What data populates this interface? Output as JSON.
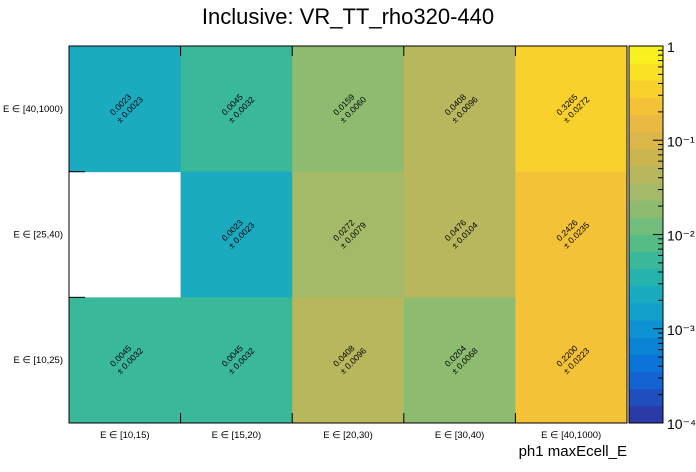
{
  "chart_data": {
    "type": "heatmap",
    "title": "Inclusive: VR_TT_rho320-440",
    "xlabel": "ph1 maxEcell_E",
    "ylabel": "",
    "x_categories": [
      "E ∈ [10,15)",
      "E ∈ [15,20)",
      "E ∈ [20,30)",
      "E ∈ [30,40)",
      "E ∈ [40,1000)"
    ],
    "y_categories": [
      "E ∈ [10,25)",
      "E ∈ [25,40)",
      "E ∈ [40,1000)"
    ],
    "z_scale": "log",
    "zlim": [
      0.0001,
      1
    ],
    "colorbar_ticks": [
      {
        "value": 1,
        "label": "1"
      },
      {
        "value": 0.1,
        "label": "10⁻¹"
      },
      {
        "value": 0.01,
        "label": "10⁻²"
      },
      {
        "value": 0.001,
        "label": "10⁻³"
      },
      {
        "value": 0.0001,
        "label": "10⁻⁴"
      }
    ],
    "cells": [
      {
        "x": 0,
        "y": 2,
        "value": 0.0023,
        "label": "0.0023",
        "error": "± 0.0023"
      },
      {
        "x": 1,
        "y": 2,
        "value": 0.0045,
        "label": "0.0045",
        "error": "± 0.0032"
      },
      {
        "x": 2,
        "y": 2,
        "value": 0.0159,
        "label": "0.0159",
        "error": "± 0.0060"
      },
      {
        "x": 3,
        "y": 2,
        "value": 0.0408,
        "label": "0.0408",
        "error": "± 0.0096"
      },
      {
        "x": 4,
        "y": 2,
        "value": 0.3265,
        "label": "0.3265",
        "error": "± 0.0272"
      },
      {
        "x": 1,
        "y": 1,
        "value": 0.0023,
        "label": "0.0023",
        "error": "± 0.0023"
      },
      {
        "x": 2,
        "y": 1,
        "value": 0.0272,
        "label": "0.0272",
        "error": "± 0.0079"
      },
      {
        "x": 3,
        "y": 1,
        "value": 0.0476,
        "label": "0.0476",
        "error": "± 0.0104"
      },
      {
        "x": 4,
        "y": 1,
        "value": 0.2426,
        "label": "0.2426",
        "error": "± 0.0235"
      },
      {
        "x": 0,
        "y": 0,
        "value": 0.0045,
        "label": "0.0045",
        "error": "± 0.0032"
      },
      {
        "x": 1,
        "y": 0,
        "value": 0.0045,
        "label": "0.0045",
        "error": "± 0.0032"
      },
      {
        "x": 2,
        "y": 0,
        "value": 0.0408,
        "label": "0.0408",
        "error": "± 0.0096"
      },
      {
        "x": 3,
        "y": 0,
        "value": 0.0204,
        "label": "0.0204",
        "error": "± 0.0068"
      },
      {
        "x": 4,
        "y": 0,
        "value": 0.22,
        "label": "0.2200",
        "error": "± 0.0223"
      }
    ],
    "palette": [
      "#2a3aa6",
      "#1f4fbf",
      "#1463d2",
      "#0b74d8",
      "#0b84d6",
      "#0f92d2",
      "#13a0cc",
      "#1aabc0",
      "#26b3ad",
      "#3ab89a",
      "#56bc86",
      "#72bd7b",
      "#8dbc71",
      "#a5ba68",
      "#b8b75d",
      "#cab551",
      "#dbb649",
      "#e9b941",
      "#f4c236",
      "#f8d12d",
      "#f9e225",
      "#f9f01f"
    ]
  }
}
